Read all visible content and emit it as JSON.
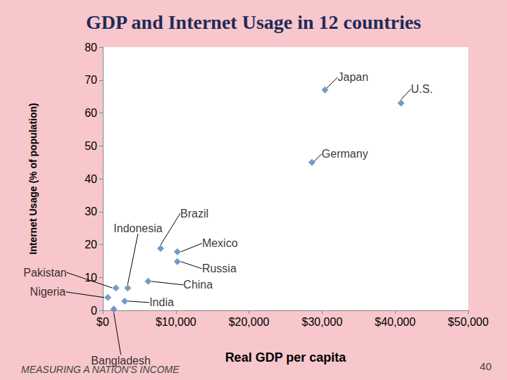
{
  "chart_data": {
    "type": "scatter",
    "title": "GDP and Internet Usage in 12 countries",
    "x_label": "Real GDP per capita",
    "y_label": "Internet Usage (% of population)",
    "footer": "MEASURING A NATION'S INCOME",
    "page_number": 40,
    "color": "#4f81bd",
    "marker": "diamond",
    "points": [
      {
        "label": "Japan",
        "x": 30400,
        "y": 67
      },
      {
        "label": "U.S.",
        "x": 40800,
        "y": 63
      },
      {
        "label": "Germany",
        "x": 28600,
        "y": 45
      },
      {
        "label": "Brazil",
        "x": 7900,
        "y": 18.8
      },
      {
        "label": "Mexico",
        "x": 10200,
        "y": 17.8
      },
      {
        "label": "Russia",
        "x": 10200,
        "y": 14.8
      },
      {
        "label": "China",
        "x": 6200,
        "y": 8.8
      },
      {
        "label": "India",
        "x": 3000,
        "y": 2.8
      },
      {
        "label": "Indonesia",
        "x": 3400,
        "y": 6.8
      },
      {
        "label": "Pakistan",
        "x": 1800,
        "y": 6.8
      },
      {
        "label": "Nigeria",
        "x": 700,
        "y": 3.9
      },
      {
        "label": "Bangladesh",
        "x": 1500,
        "y": 0.4
      }
    ],
    "xlim": [
      0,
      50000
    ],
    "xticks": [
      {
        "value": 0,
        "label": "$0"
      },
      {
        "value": 10000,
        "label": "$10,000"
      },
      {
        "value": 20000,
        "label": "$20,000"
      },
      {
        "value": 30000,
        "label": "$30,000"
      },
      {
        "value": 40000,
        "label": "$40,000"
      },
      {
        "value": 50000,
        "label": "$50,000"
      }
    ],
    "ylim": [
      0,
      80
    ],
    "yticks": [
      0,
      10,
      20,
      30,
      40,
      50,
      60,
      70,
      80
    ],
    "grid": false
  }
}
